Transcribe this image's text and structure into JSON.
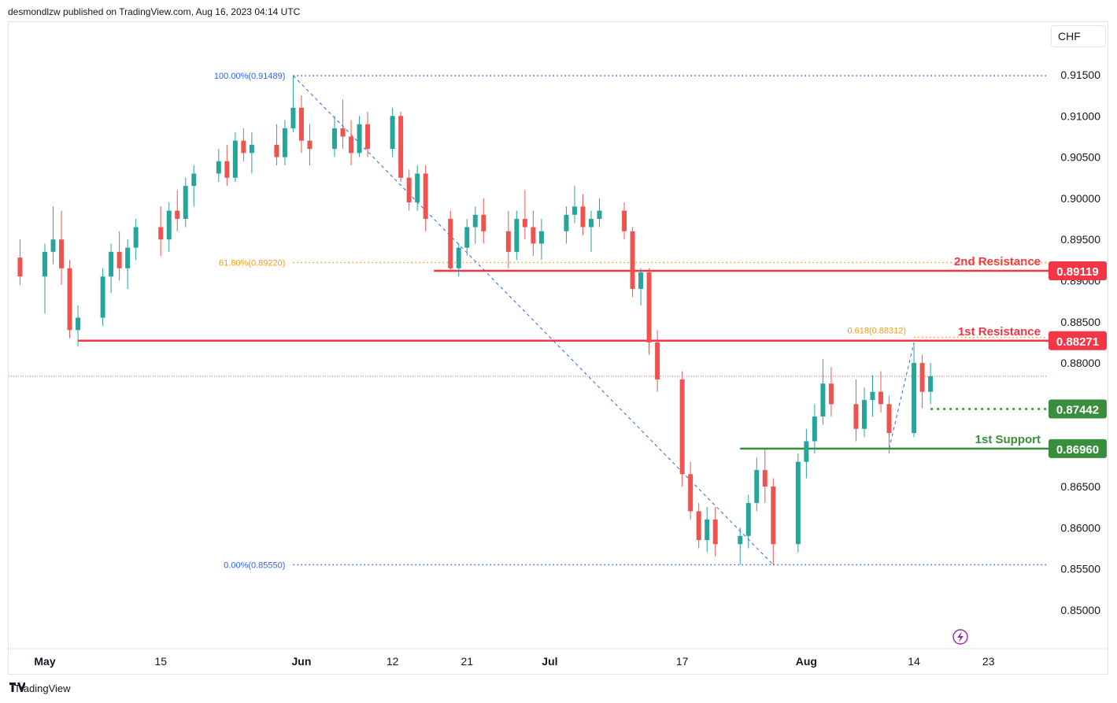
{
  "header": {
    "publisher": "desmondlzw published on TradingView.com, Aug 16, 2023 04:14 UTC"
  },
  "currency": "CHF",
  "footer": {
    "brand": "TradingView"
  },
  "colors": {
    "up": "#26a69a",
    "down": "#ef5350",
    "resistance": "#f23645",
    "support": "#388e3c",
    "fib_blue": "#2962ff",
    "fib_orange": "#f59d0c",
    "last_price": "#ef5350"
  },
  "chart_data": {
    "type": "candlestick",
    "y_axis": {
      "range": [
        0.8455,
        0.9195
      ],
      "ticks": [
        "0.91500",
        "0.91000",
        "0.90500",
        "0.90000",
        "0.89500",
        "0.89000",
        "0.88500",
        "0.88000",
        "0.87500",
        "0.87000",
        "0.86500",
        "0.86000",
        "0.85500",
        "0.85000"
      ],
      "tick_values": [
        0.915,
        0.91,
        0.905,
        0.9,
        0.895,
        0.89,
        0.885,
        0.88,
        0.875,
        0.87,
        0.865,
        0.86,
        0.855,
        0.85
      ]
    },
    "x_axis": {
      "labels": [
        {
          "text": "May",
          "bold": true,
          "date": "2023-05-01"
        },
        {
          "text": "15",
          "bold": false,
          "date": "2023-05-15"
        },
        {
          "text": "Jun",
          "bold": true,
          "date": "2023-06-01"
        },
        {
          "text": "12",
          "bold": false,
          "date": "2023-06-12"
        },
        {
          "text": "21",
          "bold": false,
          "date": "2023-06-21"
        },
        {
          "text": "Jul",
          "bold": true,
          "date": "2023-07-01"
        },
        {
          "text": "17",
          "bold": false,
          "date": "2023-07-17"
        },
        {
          "text": "Aug",
          "bold": true,
          "date": "2023-08-01"
        },
        {
          "text": "14",
          "bold": false,
          "date": "2023-08-14"
        },
        {
          "text": "23",
          "bold": false,
          "date": "2023-08-23"
        }
      ]
    },
    "levels": [
      {
        "name": "2nd Resistance",
        "label": "2nd Resistance",
        "price": 0.89119,
        "price_label": "0.89119",
        "kind": "resistance",
        "start_date": "2023-06-17"
      },
      {
        "name": "1st Resistance",
        "label": "1st Resistance",
        "price": 0.88271,
        "price_label": "0.88271",
        "kind": "resistance",
        "start_date": "2023-05-05"
      },
      {
        "name": "",
        "label": "",
        "price": 0.87442,
        "price_label": "0.87442",
        "kind": "support-dotted",
        "start_date": "2023-08-16"
      },
      {
        "name": "1st Support",
        "label": "1st Support",
        "price": 0.8696,
        "price_label": "0.86960",
        "kind": "support",
        "start_date": "2023-07-24"
      }
    ],
    "fib_major": {
      "start": {
        "date": "2023-05-31",
        "price": 0.91489
      },
      "end": {
        "date": "2023-07-28",
        "price": 0.8555
      },
      "labels": [
        {
          "text": "100.00%(0.91489)",
          "price": 0.91489
        },
        {
          "text": "61.80%(0.89220)",
          "price": 0.8922
        },
        {
          "text": "0.00%(0.85550)",
          "price": 0.8555
        }
      ]
    },
    "fib_minor": {
      "label": "0.618(0.88312)",
      "price": 0.88312,
      "start": {
        "date": "2023-08-11",
        "price": 0.8696
      },
      "end": {
        "date": "2023-08-14",
        "price": 0.8825
      }
    },
    "last_price": 0.8784,
    "candles": [
      [
        "2023-04-28",
        0.8928,
        0.895,
        0.8895,
        0.8905
      ],
      [
        "2023-05-01",
        0.8905,
        0.8945,
        0.886,
        0.8935
      ],
      [
        "2023-05-02",
        0.8935,
        0.899,
        0.892,
        0.895
      ],
      [
        "2023-05-03",
        0.895,
        0.8985,
        0.8895,
        0.8915
      ],
      [
        "2023-05-04",
        0.8915,
        0.8925,
        0.883,
        0.884
      ],
      [
        "2023-05-05",
        0.884,
        0.887,
        0.882,
        0.8855
      ],
      [
        "2023-05-08",
        0.8855,
        0.8915,
        0.8845,
        0.8905
      ],
      [
        "2023-05-09",
        0.8905,
        0.8945,
        0.8885,
        0.8935
      ],
      [
        "2023-05-10",
        0.8935,
        0.896,
        0.89,
        0.8915
      ],
      [
        "2023-05-11",
        0.8915,
        0.895,
        0.889,
        0.894
      ],
      [
        "2023-05-12",
        0.894,
        0.8975,
        0.8925,
        0.8965
      ],
      [
        "2023-05-15",
        0.8965,
        0.899,
        0.893,
        0.895
      ],
      [
        "2023-05-16",
        0.895,
        0.8995,
        0.8935,
        0.8985
      ],
      [
        "2023-05-17",
        0.8985,
        0.901,
        0.896,
        0.8975
      ],
      [
        "2023-05-18",
        0.8975,
        0.9025,
        0.8965,
        0.9015
      ],
      [
        "2023-05-19",
        0.9015,
        0.904,
        0.899,
        0.903
      ],
      [
        "2023-05-22",
        0.903,
        0.906,
        0.902,
        0.9045
      ],
      [
        "2023-05-23",
        0.9045,
        0.9065,
        0.9015,
        0.9025
      ],
      [
        "2023-05-24",
        0.9025,
        0.908,
        0.902,
        0.907
      ],
      [
        "2023-05-25",
        0.907,
        0.9085,
        0.9045,
        0.9055
      ],
      [
        "2023-05-26",
        0.9055,
        0.908,
        0.903,
        0.9065
      ],
      [
        "2023-05-29",
        0.9065,
        0.909,
        0.904,
        0.905
      ],
      [
        "2023-05-30",
        0.905,
        0.9095,
        0.904,
        0.9085
      ],
      [
        "2023-05-31",
        0.9085,
        0.9149,
        0.908,
        0.911
      ],
      [
        "2023-06-01",
        0.911,
        0.9125,
        0.9055,
        0.907
      ],
      [
        "2023-06-02",
        0.907,
        0.909,
        0.904,
        0.906
      ],
      [
        "2023-06-05",
        0.906,
        0.91,
        0.905,
        0.9085
      ],
      [
        "2023-06-06",
        0.9085,
        0.912,
        0.906,
        0.9075
      ],
      [
        "2023-06-07",
        0.9075,
        0.9095,
        0.904,
        0.9055
      ],
      [
        "2023-06-08",
        0.9055,
        0.91,
        0.905,
        0.909
      ],
      [
        "2023-06-09",
        0.909,
        0.9105,
        0.905,
        0.906
      ],
      [
        "2023-06-12",
        0.906,
        0.911,
        0.905,
        0.91
      ],
      [
        "2023-06-13",
        0.91,
        0.9105,
        0.902,
        0.9025
      ],
      [
        "2023-06-14",
        0.9025,
        0.9035,
        0.8985,
        0.8995
      ],
      [
        "2023-06-15",
        0.8995,
        0.904,
        0.8985,
        0.903
      ],
      [
        "2023-06-16",
        0.903,
        0.904,
        0.896,
        0.8975
      ],
      [
        "2023-06-19",
        0.8975,
        0.8985,
        0.891,
        0.8915
      ],
      [
        "2023-06-20",
        0.8915,
        0.8945,
        0.8905,
        0.894
      ],
      [
        "2023-06-21",
        0.894,
        0.8975,
        0.893,
        0.8965
      ],
      [
        "2023-06-22",
        0.8965,
        0.899,
        0.8945,
        0.898
      ],
      [
        "2023-06-23",
        0.898,
        0.9,
        0.8945,
        0.896
      ],
      [
        "2023-06-26",
        0.896,
        0.8985,
        0.8915,
        0.8935
      ],
      [
        "2023-06-27",
        0.8935,
        0.8985,
        0.8925,
        0.8975
      ],
      [
        "2023-06-28",
        0.8975,
        0.901,
        0.895,
        0.8965
      ],
      [
        "2023-06-29",
        0.8965,
        0.8985,
        0.893,
        0.8945
      ],
      [
        "2023-06-30",
        0.8945,
        0.8975,
        0.8925,
        0.896
      ],
      [
        "2023-07-03",
        0.896,
        0.899,
        0.8945,
        0.898
      ],
      [
        "2023-07-04",
        0.898,
        0.9015,
        0.897,
        0.899
      ],
      [
        "2023-07-05",
        0.899,
        0.9005,
        0.8955,
        0.8965
      ],
      [
        "2023-07-06",
        0.8965,
        0.8985,
        0.8935,
        0.8975
      ],
      [
        "2023-07-07",
        0.8975,
        0.9,
        0.8965,
        0.8985
      ],
      [
        "2023-07-10",
        0.8985,
        0.8995,
        0.895,
        0.896
      ],
      [
        "2023-07-11",
        0.896,
        0.8965,
        0.888,
        0.889
      ],
      [
        "2023-07-12",
        0.889,
        0.8915,
        0.887,
        0.891
      ],
      [
        "2023-07-13",
        0.891,
        0.8915,
        0.881,
        0.8825
      ],
      [
        "2023-07-14",
        0.8825,
        0.884,
        0.8765,
        0.878
      ],
      [
        "2023-07-17",
        0.878,
        0.879,
        0.865,
        0.8665
      ],
      [
        "2023-07-18",
        0.8665,
        0.868,
        0.861,
        0.862
      ],
      [
        "2023-07-19",
        0.862,
        0.863,
        0.8575,
        0.8585
      ],
      [
        "2023-07-20",
        0.8585,
        0.8625,
        0.857,
        0.861
      ],
      [
        "2023-07-21",
        0.861,
        0.8625,
        0.8565,
        0.858
      ],
      [
        "2023-07-24",
        0.858,
        0.86,
        0.8555,
        0.859
      ],
      [
        "2023-07-25",
        0.859,
        0.864,
        0.8575,
        0.863
      ],
      [
        "2023-07-26",
        0.863,
        0.8685,
        0.862,
        0.867
      ],
      [
        "2023-07-27",
        0.867,
        0.8695,
        0.863,
        0.865
      ],
      [
        "2023-07-28",
        0.865,
        0.866,
        0.8555,
        0.858
      ],
      [
        "2023-07-31",
        0.858,
        0.869,
        0.857,
        0.868
      ],
      [
        "2023-08-01",
        0.868,
        0.872,
        0.866,
        0.8705
      ],
      [
        "2023-08-02",
        0.8705,
        0.875,
        0.869,
        0.8735
      ],
      [
        "2023-08-03",
        0.8735,
        0.8805,
        0.8725,
        0.8775
      ],
      [
        "2023-08-04",
        0.8775,
        0.8795,
        0.8735,
        0.875
      ],
      [
        "2023-08-07",
        0.875,
        0.878,
        0.8705,
        0.872
      ],
      [
        "2023-08-08",
        0.872,
        0.877,
        0.871,
        0.8755
      ],
      [
        "2023-08-09",
        0.8755,
        0.8785,
        0.8735,
        0.8765
      ],
      [
        "2023-08-10",
        0.8765,
        0.879,
        0.874,
        0.875
      ],
      [
        "2023-08-11",
        0.875,
        0.876,
        0.869,
        0.8715
      ],
      [
        "2023-08-14",
        0.8715,
        0.8825,
        0.871,
        0.88
      ],
      [
        "2023-08-15",
        0.88,
        0.881,
        0.8745,
        0.8765
      ],
      [
        "2023-08-16",
        0.8765,
        0.88,
        0.875,
        0.8784
      ]
    ]
  }
}
